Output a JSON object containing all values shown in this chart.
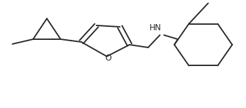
{
  "background": "#ffffff",
  "line_color": "#2a2a2a",
  "line_width": 1.4,
  "font_size": 8.5,
  "figsize": [
    3.57,
    1.57
  ],
  "dpi": 100,
  "xlim": [
    0,
    357
  ],
  "ylim": [
    0,
    157
  ]
}
